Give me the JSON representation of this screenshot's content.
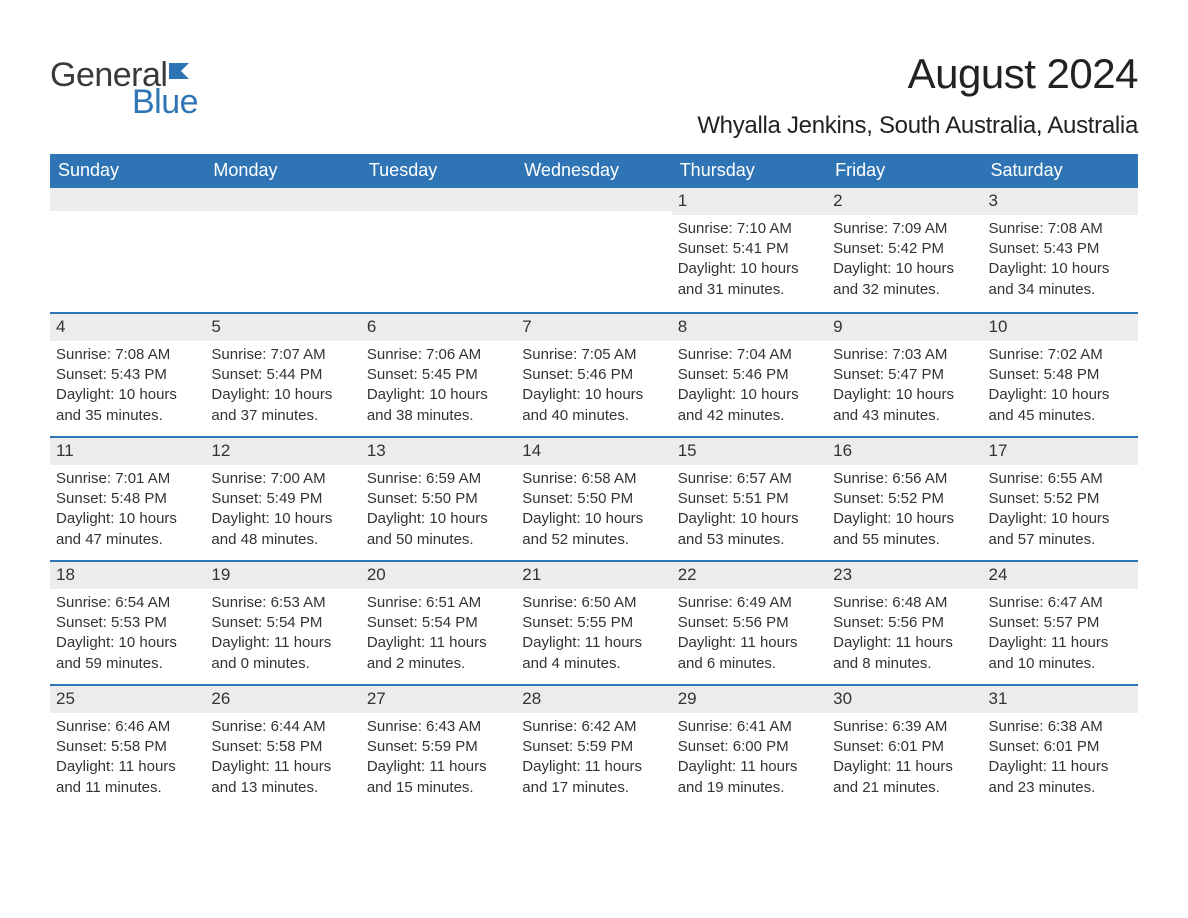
{
  "brand": {
    "name_part1": "General",
    "name_part2": "Blue",
    "color_dark": "#3a3a3a",
    "color_blue": "#2f75b5"
  },
  "header": {
    "month_title": "August 2024",
    "location": "Whyalla Jenkins, South Australia, Australia"
  },
  "colors": {
    "header_bg": "#2f75b5",
    "header_text": "#ffffff",
    "daynum_bg": "#ececec",
    "text": "#333333",
    "page_bg": "#ffffff",
    "week_border": "#2f75b5"
  },
  "typography": {
    "month_title_fontsize": 42,
    "location_fontsize": 24,
    "weekday_fontsize": 18,
    "daynum_fontsize": 17,
    "body_fontsize": 15
  },
  "weekdays": [
    "Sunday",
    "Monday",
    "Tuesday",
    "Wednesday",
    "Thursday",
    "Friday",
    "Saturday"
  ],
  "weeks": [
    [
      null,
      null,
      null,
      null,
      {
        "day": "1",
        "sunrise": "Sunrise: 7:10 AM",
        "sunset": "Sunset: 5:41 PM",
        "daylight": "Daylight: 10 hours and 31 minutes."
      },
      {
        "day": "2",
        "sunrise": "Sunrise: 7:09 AM",
        "sunset": "Sunset: 5:42 PM",
        "daylight": "Daylight: 10 hours and 32 minutes."
      },
      {
        "day": "3",
        "sunrise": "Sunrise: 7:08 AM",
        "sunset": "Sunset: 5:43 PM",
        "daylight": "Daylight: 10 hours and 34 minutes."
      }
    ],
    [
      {
        "day": "4",
        "sunrise": "Sunrise: 7:08 AM",
        "sunset": "Sunset: 5:43 PM",
        "daylight": "Daylight: 10 hours and 35 minutes."
      },
      {
        "day": "5",
        "sunrise": "Sunrise: 7:07 AM",
        "sunset": "Sunset: 5:44 PM",
        "daylight": "Daylight: 10 hours and 37 minutes."
      },
      {
        "day": "6",
        "sunrise": "Sunrise: 7:06 AM",
        "sunset": "Sunset: 5:45 PM",
        "daylight": "Daylight: 10 hours and 38 minutes."
      },
      {
        "day": "7",
        "sunrise": "Sunrise: 7:05 AM",
        "sunset": "Sunset: 5:46 PM",
        "daylight": "Daylight: 10 hours and 40 minutes."
      },
      {
        "day": "8",
        "sunrise": "Sunrise: 7:04 AM",
        "sunset": "Sunset: 5:46 PM",
        "daylight": "Daylight: 10 hours and 42 minutes."
      },
      {
        "day": "9",
        "sunrise": "Sunrise: 7:03 AM",
        "sunset": "Sunset: 5:47 PM",
        "daylight": "Daylight: 10 hours and 43 minutes."
      },
      {
        "day": "10",
        "sunrise": "Sunrise: 7:02 AM",
        "sunset": "Sunset: 5:48 PM",
        "daylight": "Daylight: 10 hours and 45 minutes."
      }
    ],
    [
      {
        "day": "11",
        "sunrise": "Sunrise: 7:01 AM",
        "sunset": "Sunset: 5:48 PM",
        "daylight": "Daylight: 10 hours and 47 minutes."
      },
      {
        "day": "12",
        "sunrise": "Sunrise: 7:00 AM",
        "sunset": "Sunset: 5:49 PM",
        "daylight": "Daylight: 10 hours and 48 minutes."
      },
      {
        "day": "13",
        "sunrise": "Sunrise: 6:59 AM",
        "sunset": "Sunset: 5:50 PM",
        "daylight": "Daylight: 10 hours and 50 minutes."
      },
      {
        "day": "14",
        "sunrise": "Sunrise: 6:58 AM",
        "sunset": "Sunset: 5:50 PM",
        "daylight": "Daylight: 10 hours and 52 minutes."
      },
      {
        "day": "15",
        "sunrise": "Sunrise: 6:57 AM",
        "sunset": "Sunset: 5:51 PM",
        "daylight": "Daylight: 10 hours and 53 minutes."
      },
      {
        "day": "16",
        "sunrise": "Sunrise: 6:56 AM",
        "sunset": "Sunset: 5:52 PM",
        "daylight": "Daylight: 10 hours and 55 minutes."
      },
      {
        "day": "17",
        "sunrise": "Sunrise: 6:55 AM",
        "sunset": "Sunset: 5:52 PM",
        "daylight": "Daylight: 10 hours and 57 minutes."
      }
    ],
    [
      {
        "day": "18",
        "sunrise": "Sunrise: 6:54 AM",
        "sunset": "Sunset: 5:53 PM",
        "daylight": "Daylight: 10 hours and 59 minutes."
      },
      {
        "day": "19",
        "sunrise": "Sunrise: 6:53 AM",
        "sunset": "Sunset: 5:54 PM",
        "daylight": "Daylight: 11 hours and 0 minutes."
      },
      {
        "day": "20",
        "sunrise": "Sunrise: 6:51 AM",
        "sunset": "Sunset: 5:54 PM",
        "daylight": "Daylight: 11 hours and 2 minutes."
      },
      {
        "day": "21",
        "sunrise": "Sunrise: 6:50 AM",
        "sunset": "Sunset: 5:55 PM",
        "daylight": "Daylight: 11 hours and 4 minutes."
      },
      {
        "day": "22",
        "sunrise": "Sunrise: 6:49 AM",
        "sunset": "Sunset: 5:56 PM",
        "daylight": "Daylight: 11 hours and 6 minutes."
      },
      {
        "day": "23",
        "sunrise": "Sunrise: 6:48 AM",
        "sunset": "Sunset: 5:56 PM",
        "daylight": "Daylight: 11 hours and 8 minutes."
      },
      {
        "day": "24",
        "sunrise": "Sunrise: 6:47 AM",
        "sunset": "Sunset: 5:57 PM",
        "daylight": "Daylight: 11 hours and 10 minutes."
      }
    ],
    [
      {
        "day": "25",
        "sunrise": "Sunrise: 6:46 AM",
        "sunset": "Sunset: 5:58 PM",
        "daylight": "Daylight: 11 hours and 11 minutes."
      },
      {
        "day": "26",
        "sunrise": "Sunrise: 6:44 AM",
        "sunset": "Sunset: 5:58 PM",
        "daylight": "Daylight: 11 hours and 13 minutes."
      },
      {
        "day": "27",
        "sunrise": "Sunrise: 6:43 AM",
        "sunset": "Sunset: 5:59 PM",
        "daylight": "Daylight: 11 hours and 15 minutes."
      },
      {
        "day": "28",
        "sunrise": "Sunrise: 6:42 AM",
        "sunset": "Sunset: 5:59 PM",
        "daylight": "Daylight: 11 hours and 17 minutes."
      },
      {
        "day": "29",
        "sunrise": "Sunrise: 6:41 AM",
        "sunset": "Sunset: 6:00 PM",
        "daylight": "Daylight: 11 hours and 19 minutes."
      },
      {
        "day": "30",
        "sunrise": "Sunrise: 6:39 AM",
        "sunset": "Sunset: 6:01 PM",
        "daylight": "Daylight: 11 hours and 21 minutes."
      },
      {
        "day": "31",
        "sunrise": "Sunrise: 6:38 AM",
        "sunset": "Sunset: 6:01 PM",
        "daylight": "Daylight: 11 hours and 23 minutes."
      }
    ]
  ]
}
